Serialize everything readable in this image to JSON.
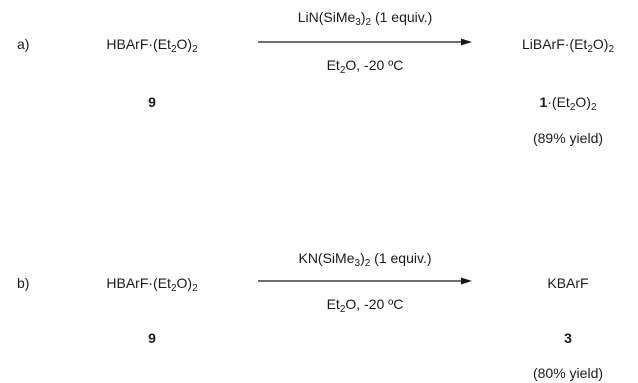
{
  "scheme_a": {
    "label": "a)",
    "reactant": {
      "formula": "HBArF·(Et",
      "sub": "2",
      "suffix": "O)",
      "sub2": "2",
      "compound_number": "9"
    },
    "reagent": {
      "pre": "LiN(SiMe",
      "sub": "3",
      "post": ")",
      "sub2": "2",
      "post2": " (1 equiv.)"
    },
    "conditions": {
      "pre": "Et",
      "sub": "2",
      "post": "O, -20 ºC"
    },
    "product": {
      "formula": "LiBArF·(Et",
      "sub": "2",
      "suffix": "O)",
      "sub2": "2",
      "compound_number": "1",
      "compound_suffix": "·(Et",
      "compound_sub": "2",
      "compound_suffix2": "O)",
      "compound_sub2": "2",
      "yield": "(89% yield)"
    }
  },
  "scheme_b": {
    "label": "b)",
    "reactant": {
      "formula": "HBArF·(Et",
      "sub": "2",
      "suffix": "O)",
      "sub2": "2",
      "compound_number": "9"
    },
    "reagent": {
      "pre": "KN(SiMe",
      "sub": "3",
      "post": ")",
      "sub2": "2",
      "post2": " (1 equiv.)"
    },
    "conditions": {
      "pre": "Et",
      "sub": "2",
      "post": "O, -20 ºC"
    },
    "product": {
      "formula": "KBArF",
      "compound_number": "3",
      "yield": "(80% yield)"
    }
  }
}
